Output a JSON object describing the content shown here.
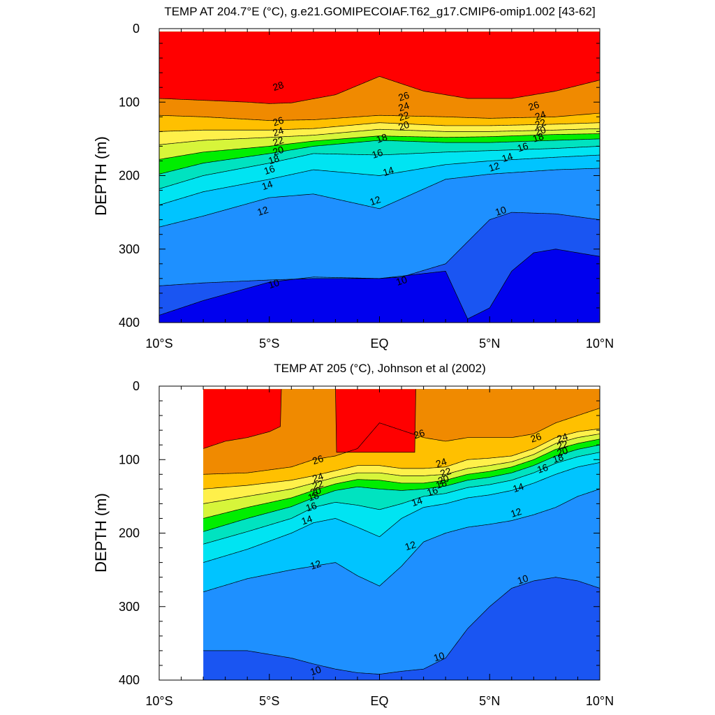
{
  "chart_data": [
    {
      "type": "heatmap",
      "subtype": "filled-contour",
      "title": "TEMP AT 204.7°E (°C), g.e21.GOMIPECOIAF.T62_g17.CMIP6-omip1.002 [43-62]",
      "xlabel": "",
      "ylabel": "DEPTH (m)",
      "xlim": [
        -10,
        10
      ],
      "ylim": [
        400,
        0
      ],
      "xticks": [
        -10,
        -5,
        0,
        5,
        10
      ],
      "xtick_labels": [
        "10°S",
        "5°S",
        "EQ",
        "5°N",
        "10°N"
      ],
      "yticks": [
        0,
        100,
        200,
        300,
        400
      ],
      "ytick_labels": [
        "0",
        "100",
        "200",
        "300",
        "400"
      ],
      "data_x_range": [
        -10,
        10
      ],
      "contour_levels": [
        8,
        9,
        10,
        11,
        12,
        13,
        14,
        15,
        16,
        17,
        18,
        19,
        20,
        21,
        22,
        23,
        24,
        25,
        26,
        27,
        28
      ],
      "isotherm_depths": [
        {
          "level": 28,
          "x": [
            -10,
            -6,
            -5,
            -4,
            -2,
            0,
            2,
            4,
            6,
            8,
            10
          ],
          "depth": [
            95,
            100,
            102,
            101,
            90,
            65,
            85,
            95,
            95,
            85,
            70
          ]
        },
        {
          "level": 26,
          "x": [
            -10,
            -8,
            -5,
            -3,
            0,
            3,
            5,
            8,
            10
          ],
          "depth": [
            118,
            120,
            125,
            124,
            118,
            120,
            122,
            120,
            115
          ]
        },
        {
          "level": 24,
          "x": [
            -10,
            -8,
            -5,
            -3,
            0,
            3,
            5,
            8,
            10
          ],
          "depth": [
            140,
            138,
            138,
            136,
            128,
            132,
            132,
            130,
            128
          ]
        },
        {
          "level": 22,
          "x": [
            -10,
            -8,
            -5,
            -3,
            0,
            3,
            5,
            8,
            10
          ],
          "depth": [
            158,
            152,
            148,
            145,
            137,
            140,
            140,
            138,
            136
          ]
        },
        {
          "level": 20,
          "x": [
            -10,
            -8,
            -5,
            -3,
            0,
            3,
            5,
            8,
            10
          ],
          "depth": [
            178,
            168,
            160,
            153,
            146,
            148,
            147,
            144,
            143
          ]
        },
        {
          "level": 18,
          "x": [
            -10,
            -8,
            -5,
            -3,
            0,
            3,
            5,
            8,
            10
          ],
          "depth": [
            198,
            183,
            170,
            160,
            152,
            155,
            155,
            152,
            150
          ]
        },
        {
          "level": 16,
          "x": [
            -10,
            -8,
            -5,
            -3,
            0,
            3,
            5,
            8,
            10
          ],
          "depth": [
            218,
            200,
            183,
            170,
            172,
            168,
            166,
            163,
            160
          ]
        },
        {
          "level": 14,
          "x": [
            -10,
            -8,
            -5,
            -3,
            0,
            3,
            5,
            8,
            10
          ],
          "depth": [
            240,
            222,
            205,
            192,
            200,
            185,
            180,
            175,
            172
          ]
        },
        {
          "level": 12,
          "x": [
            -10,
            -8,
            -5,
            -3,
            0,
            3,
            5,
            8,
            10
          ],
          "depth": [
            270,
            255,
            230,
            225,
            245,
            205,
            198,
            192,
            190
          ]
        },
        {
          "level": 10,
          "x": [
            -10,
            -8,
            -5,
            -3,
            -1,
            0,
            1,
            3,
            4,
            5,
            6,
            8,
            10
          ],
          "depth": [
            350,
            346,
            342,
            340,
            340,
            340,
            338,
            320,
            290,
            260,
            250,
            252,
            260
          ]
        },
        {
          "level": 9,
          "x": [
            -10,
            -8,
            -5,
            -3,
            0,
            3,
            4,
            5,
            6,
            7,
            8,
            10
          ],
          "depth": [
            390,
            370,
            345,
            338,
            340,
            330,
            395,
            380,
            330,
            305,
            300,
            310
          ]
        }
      ],
      "contour_labels": [
        {
          "text": "28",
          "x": -4.6,
          "depth": 78
        },
        {
          "text": "26",
          "x": -4.6,
          "depth": 126
        },
        {
          "text": "24",
          "x": -4.6,
          "depth": 140
        },
        {
          "text": "22",
          "x": -4.6,
          "depth": 153
        },
        {
          "text": "20",
          "x": -4.6,
          "depth": 166
        },
        {
          "text": "18",
          "x": -4.8,
          "depth": 178
        },
        {
          "text": "16",
          "x": -5.0,
          "depth": 192
        },
        {
          "text": "14",
          "x": -5.1,
          "depth": 213
        },
        {
          "text": "12",
          "x": -5.3,
          "depth": 248
        },
        {
          "text": "10",
          "x": -4.8,
          "depth": 347
        },
        {
          "text": "26",
          "x": 1.1,
          "depth": 92
        },
        {
          "text": "24",
          "x": 1.1,
          "depth": 106
        },
        {
          "text": "22",
          "x": 1.1,
          "depth": 119
        },
        {
          "text": "20",
          "x": 1.1,
          "depth": 132
        },
        {
          "text": "18",
          "x": 0.1,
          "depth": 149
        },
        {
          "text": "16",
          "x": -0.1,
          "depth": 170
        },
        {
          "text": "14",
          "x": 0.4,
          "depth": 194
        },
        {
          "text": "12",
          "x": -0.2,
          "depth": 234
        },
        {
          "text": "10",
          "x": 1.0,
          "depth": 343
        },
        {
          "text": "26",
          "x": 7.0,
          "depth": 105
        },
        {
          "text": "24",
          "x": 7.3,
          "depth": 118
        },
        {
          "text": "22",
          "x": 7.3,
          "depth": 129
        },
        {
          "text": "20",
          "x": 7.3,
          "depth": 139
        },
        {
          "text": "18",
          "x": 7.2,
          "depth": 148
        },
        {
          "text": "16",
          "x": 6.5,
          "depth": 161
        },
        {
          "text": "14",
          "x": 5.8,
          "depth": 175
        },
        {
          "text": "12",
          "x": 5.2,
          "depth": 188
        },
        {
          "text": "10",
          "x": 5.5,
          "depth": 248
        }
      ]
    },
    {
      "type": "heatmap",
      "subtype": "filled-contour",
      "title": "TEMP AT 205 (°C), Johnson et al (2002)",
      "xlabel": "",
      "ylabel": "DEPTH (m)",
      "xlim": [
        -10,
        10
      ],
      "ylim": [
        400,
        0
      ],
      "xticks": [
        -10,
        -5,
        0,
        5,
        10
      ],
      "xtick_labels": [
        "10°S",
        "5°S",
        "EQ",
        "5°N",
        "10°N"
      ],
      "yticks": [
        0,
        100,
        200,
        300,
        400
      ],
      "ytick_labels": [
        "0",
        "100",
        "200",
        "300",
        "400"
      ],
      "data_x_range": [
        -8,
        10
      ],
      "contour_levels": [
        8,
        9,
        10,
        11,
        12,
        13,
        14,
        15,
        16,
        17,
        18,
        19,
        20,
        21,
        22,
        23,
        24,
        25,
        26,
        27,
        28
      ],
      "isotherm_depths": [
        {
          "level": 28,
          "x": [
            -8,
            -7,
            -6,
            -5,
            -4.5,
            -4.5,
            -2,
            -2,
            1.6,
            1.6,
            3,
            5,
            6,
            7,
            8,
            9,
            10
          ],
          "depth": [
            85,
            75,
            70,
            62,
            55,
            0,
            0,
            90,
            90,
            0,
            0,
            0,
            0,
            0,
            0,
            0,
            0
          ]
        },
        {
          "level": 26,
          "x": [
            -8,
            -6,
            -4,
            -3,
            -2,
            -1,
            0,
            1,
            2,
            3,
            4,
            5,
            6,
            7,
            8,
            9,
            10
          ],
          "depth": [
            120,
            118,
            110,
            100,
            95,
            85,
            50,
            60,
            70,
            75,
            70,
            70,
            70,
            65,
            50,
            40,
            30
          ]
        },
        {
          "level": 24,
          "x": [
            -8,
            -6,
            -4,
            -3,
            -2,
            -1,
            0,
            1,
            2,
            3,
            4,
            5,
            6,
            7,
            8,
            9,
            10
          ],
          "depth": [
            140,
            135,
            128,
            122,
            115,
            108,
            108,
            112,
            112,
            110,
            100,
            98,
            95,
            85,
            70,
            62,
            58
          ]
        },
        {
          "level": 22,
          "x": [
            -8,
            -6,
            -4,
            -3,
            -2,
            -1,
            0,
            1,
            2,
            3,
            4,
            5,
            6,
            7,
            8,
            9,
            10
          ],
          "depth": [
            160,
            150,
            140,
            132,
            124,
            118,
            118,
            122,
            122,
            120,
            112,
            108,
            103,
            93,
            78,
            70,
            65
          ]
        },
        {
          "level": 20,
          "x": [
            -8,
            -6,
            -4,
            -3,
            -2,
            -1,
            0,
            1,
            2,
            3,
            4,
            5,
            6,
            7,
            8,
            9,
            10
          ],
          "depth": [
            180,
            165,
            152,
            142,
            133,
            127,
            128,
            132,
            132,
            128,
            120,
            116,
            110,
            100,
            86,
            78,
            72
          ]
        },
        {
          "level": 18,
          "x": [
            -8,
            -6,
            -4,
            -3,
            -2,
            -1,
            0,
            1,
            2,
            3,
            4,
            5,
            6,
            7,
            8,
            9,
            10
          ],
          "depth": [
            198,
            180,
            164,
            152,
            142,
            137,
            140,
            142,
            140,
            136,
            128,
            124,
            118,
            108,
            95,
            86,
            80
          ]
        },
        {
          "level": 16,
          "x": [
            -8,
            -6,
            -4,
            -3,
            -2,
            -1,
            0,
            1,
            2,
            3,
            4,
            5,
            6,
            7,
            8,
            9,
            10
          ],
          "depth": [
            215,
            198,
            180,
            165,
            158,
            162,
            168,
            160,
            150,
            146,
            138,
            134,
            128,
            118,
            105,
            96,
            90
          ]
        },
        {
          "level": 14,
          "x": [
            -8,
            -6,
            -4,
            -3,
            -2,
            -1,
            0,
            1,
            2,
            3,
            4,
            5,
            6,
            7,
            8,
            9,
            10
          ],
          "depth": [
            240,
            222,
            200,
            186,
            180,
            192,
            205,
            180,
            165,
            160,
            152,
            148,
            142,
            132,
            120,
            110,
            104
          ]
        },
        {
          "level": 12,
          "x": [
            -8,
            -6,
            -4,
            -3,
            -2,
            -1,
            0,
            1,
            2,
            3,
            4,
            5,
            6,
            7,
            8,
            9,
            10
          ],
          "depth": [
            280,
            262,
            250,
            245,
            240,
            258,
            272,
            245,
            212,
            200,
            192,
            188,
            183,
            175,
            165,
            150,
            140
          ]
        },
        {
          "level": 10,
          "x": [
            -8,
            -6,
            -4,
            -3,
            -2,
            -1,
            0,
            1,
            2,
            3,
            4,
            5,
            6,
            7,
            8,
            9,
            10
          ],
          "depth": [
            360,
            360,
            370,
            378,
            385,
            390,
            392,
            388,
            385,
            370,
            330,
            300,
            275,
            265,
            260,
            265,
            275
          ]
        }
      ],
      "contour_labels": [
        {
          "text": "26",
          "x": -2.8,
          "depth": 100
        },
        {
          "text": "24",
          "x": -2.8,
          "depth": 124
        },
        {
          "text": "22",
          "x": -2.8,
          "depth": 134
        },
        {
          "text": "20",
          "x": -2.9,
          "depth": 143
        },
        {
          "text": "18",
          "x": -3.0,
          "depth": 150
        },
        {
          "text": "16",
          "x": -3.1,
          "depth": 164
        },
        {
          "text": "14",
          "x": -3.3,
          "depth": 182
        },
        {
          "text": "12",
          "x": -2.9,
          "depth": 243
        },
        {
          "text": "10",
          "x": -2.9,
          "depth": 387
        },
        {
          "text": "26",
          "x": 1.8,
          "depth": 65
        },
        {
          "text": "24",
          "x": 2.8,
          "depth": 104
        },
        {
          "text": "22",
          "x": 3.0,
          "depth": 117
        },
        {
          "text": "20",
          "x": 2.9,
          "depth": 127
        },
        {
          "text": "18",
          "x": 2.8,
          "depth": 133
        },
        {
          "text": "16",
          "x": 2.4,
          "depth": 143
        },
        {
          "text": "14",
          "x": 1.7,
          "depth": 157
        },
        {
          "text": "12",
          "x": 1.4,
          "depth": 217
        },
        {
          "text": "10",
          "x": 2.7,
          "depth": 368
        },
        {
          "text": "26",
          "x": 7.1,
          "depth": 70
        },
        {
          "text": "24",
          "x": 8.3,
          "depth": 70
        },
        {
          "text": "22",
          "x": 8.3,
          "depth": 80
        },
        {
          "text": "20",
          "x": 8.3,
          "depth": 89
        },
        {
          "text": "18",
          "x": 8.1,
          "depth": 98
        },
        {
          "text": "16",
          "x": 7.4,
          "depth": 112
        },
        {
          "text": "14",
          "x": 6.3,
          "depth": 138
        },
        {
          "text": "12",
          "x": 6.2,
          "depth": 172
        },
        {
          "text": "10",
          "x": 6.5,
          "depth": 263
        }
      ]
    }
  ],
  "colors": {
    "background": "#ffffff",
    "axis": "#000000",
    "fill_levels": {
      "8": "#0000ee",
      "9": "#1a55f2",
      "10": "#1e90ff",
      "11": "#00aaff",
      "12": "#00c4ff",
      "13": "#00d4ff",
      "14": "#00e4f2",
      "15": "#00f5ff",
      "16": "#00e3c0",
      "17": "#00e27a",
      "18": "#00ee00",
      "19": "#8cf030",
      "20": "#d7f53a",
      "21": "#ffff00",
      "22": "#fff04a",
      "23": "#ffd53d",
      "24": "#ffc000",
      "25": "#ffa533",
      "26": "#f08a00",
      "27": "#ff4500",
      "28": "#ff0000"
    }
  }
}
